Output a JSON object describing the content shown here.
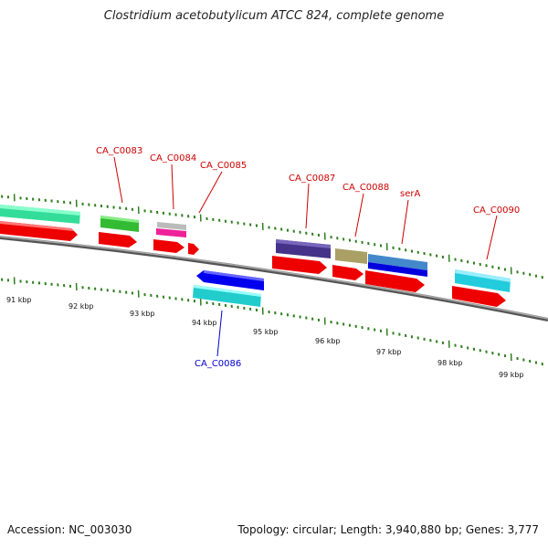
{
  "title": "Clostridium acetobutylicum ATCC 824, complete genome",
  "footer": {
    "accession": "Accession: NC_003030",
    "summary": "Topology: circular; Length: 3,940,880 bp; Genes: 3,777"
  },
  "colors": {
    "backbone": "#888888",
    "tick": "#2f7f1f",
    "label_forward": "#cc0000",
    "label_reverse": "#0000cc",
    "cds": "#ff0000"
  },
  "kbp_labels": [
    "91 kbp",
    "92 kbp",
    "93 kbp",
    "94 kbp",
    "95 kbp",
    "96 kbp",
    "97 kbp",
    "98 kbp",
    "99 kbp"
  ],
  "gene_labels": [
    {
      "text": "CA_C0083",
      "strand": "forward"
    },
    {
      "text": "CA_C0084",
      "strand": "forward"
    },
    {
      "text": "CA_C0085",
      "strand": "forward"
    },
    {
      "text": "CA_C0087",
      "strand": "forward"
    },
    {
      "text": "CA_C0088",
      "strand": "forward"
    },
    {
      "text": "serA",
      "strand": "forward"
    },
    {
      "text": "CA_C0090",
      "strand": "forward"
    },
    {
      "text": "CA_C0086",
      "strand": "reverse"
    }
  ]
}
